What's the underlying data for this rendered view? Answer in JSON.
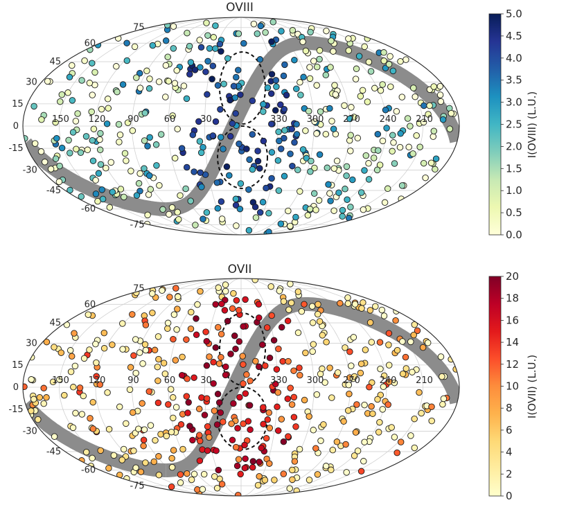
{
  "chart_data": [
    {
      "type": "scatter",
      "projection": "mollweide",
      "coordinate_system": "galactic",
      "title": "OVIII",
      "colorbar": {
        "label": "I(OVIII) (L.U.)",
        "min": 0.0,
        "max": 5.0,
        "ticks": [
          "0.0",
          "0.5",
          "1.0",
          "1.5",
          "2.0",
          "2.5",
          "3.0",
          "3.5",
          "4.0",
          "4.5",
          "5.0"
        ],
        "colormap": "YlGnBu",
        "colors": [
          "#ffffd9",
          "#edf8b1",
          "#c7e9b4",
          "#7fcdbb",
          "#41b6c4",
          "#1d91c0",
          "#225ea8",
          "#253494",
          "#081d58"
        ]
      },
      "lat_ticks": [
        "75",
        "60",
        "45",
        "30",
        "15",
        "0",
        "-15",
        "-30",
        "-45",
        "-60",
        "-75"
      ],
      "lon_ticks": [
        "150",
        "120",
        "90",
        "60",
        "30",
        "330",
        "300",
        "270",
        "240",
        "210"
      ],
      "annotations": [
        "ecliptic plane band (gray)",
        "Fermi/eROSITA bubbles outline (dashed)"
      ],
      "grid": true
    },
    {
      "type": "scatter",
      "projection": "mollweide",
      "coordinate_system": "galactic",
      "title": "OVII",
      "colorbar": {
        "label": "I(OVII) (L.U.)",
        "min": 0,
        "max": 20,
        "ticks": [
          "0",
          "2",
          "4",
          "6",
          "8",
          "10",
          "12",
          "14",
          "16",
          "18",
          "20"
        ],
        "colormap": "YlOrRd",
        "colors": [
          "#ffffcc",
          "#ffeda0",
          "#fed976",
          "#feb24c",
          "#fd8d3c",
          "#fc4e2a",
          "#e31a1c",
          "#bd0026",
          "#800026"
        ]
      },
      "lat_ticks": [
        "75",
        "60",
        "45",
        "30",
        "15",
        "0",
        "-15",
        "-30",
        "-45",
        "-60",
        "-75"
      ],
      "lon_ticks": [
        "150",
        "120",
        "90",
        "60",
        "30",
        "330",
        "300",
        "270",
        "240",
        "210"
      ],
      "annotations": [
        "ecliptic plane band (gray)",
        "Fermi/eROSITA bubbles outline (dashed)"
      ],
      "grid": true
    }
  ]
}
